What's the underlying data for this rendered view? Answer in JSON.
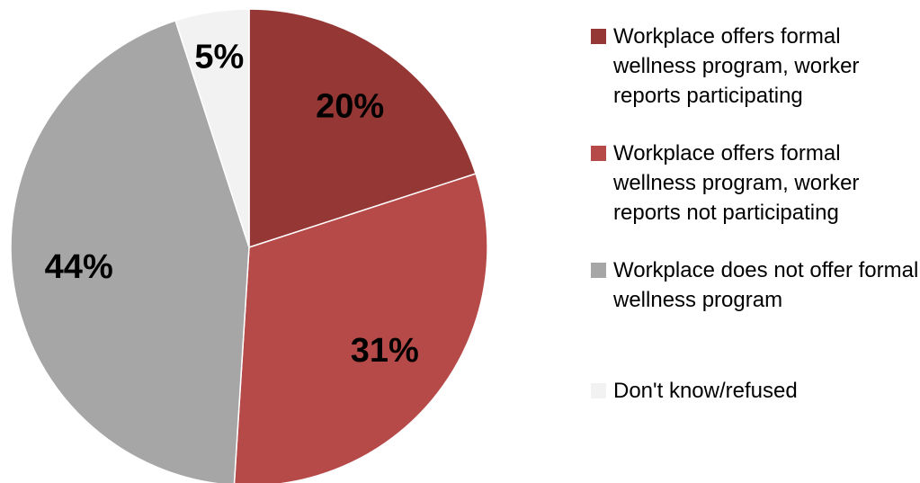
{
  "chart_data": {
    "type": "pie",
    "categories": [
      "Workplace offers formal wellness program, worker reports participating",
      "Workplace offers formal wellness program, worker reports not participating",
      "Workplace does not offer formal wellness program",
      "Don't know/refused"
    ],
    "values": [
      20,
      31,
      44,
      5
    ],
    "value_labels": [
      "20%",
      "31%",
      "44%",
      "5%"
    ],
    "colors": [
      "#953735",
      "#b64a48",
      "#a6a6a6",
      "#f2f2f2"
    ],
    "legend": "right"
  }
}
